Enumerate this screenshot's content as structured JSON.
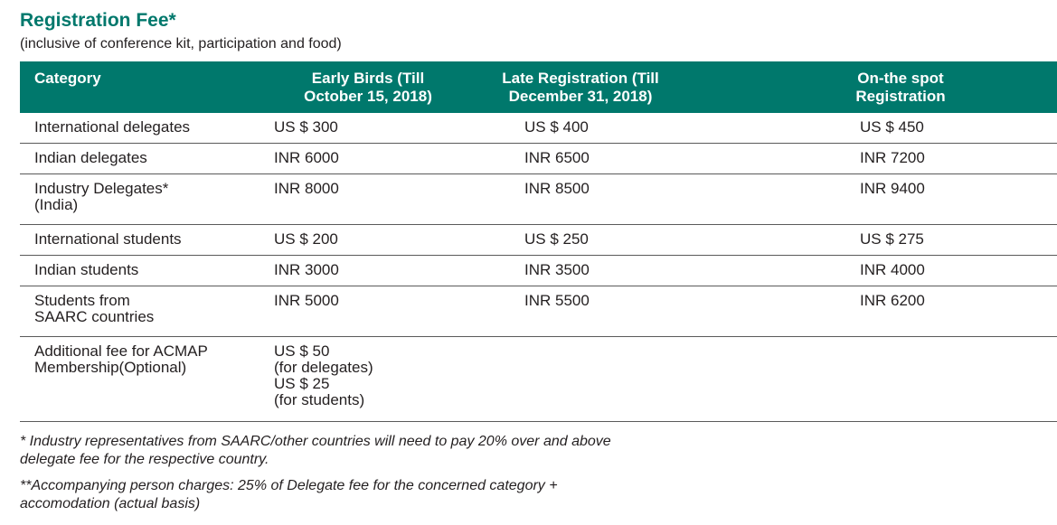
{
  "title": "Registration Fee*",
  "subtitle": "(inclusive of conference kit, participation and food)",
  "table": {
    "headers": [
      [
        "Category",
        ""
      ],
      [
        "Early Birds (Till",
        "October 15, 2018)"
      ],
      [
        "Late Registration (Till",
        "December 31, 2018)"
      ],
      [
        "On-the spot",
        "Registration"
      ]
    ],
    "rows": [
      {
        "category": [
          "International delegates"
        ],
        "early": [
          "US $ 300"
        ],
        "late": [
          "US $ 400"
        ],
        "spot": [
          "US $ 450"
        ]
      },
      {
        "category": [
          "Indian delegates"
        ],
        "early": [
          "INR 6000"
        ],
        "late": [
          "INR 6500"
        ],
        "spot": [
          "INR 7200"
        ]
      },
      {
        "category": [
          "Industry Delegates*",
          "(India)"
        ],
        "early": [
          "INR 8000"
        ],
        "late": [
          "INR 8500"
        ],
        "spot": [
          "INR 9400"
        ]
      },
      {
        "category": [
          "International students"
        ],
        "early": [
          "US $ 200"
        ],
        "late": [
          "US $ 250"
        ],
        "spot": [
          "US $ 275"
        ]
      },
      {
        "category": [
          "Indian students"
        ],
        "early": [
          "INR 3000"
        ],
        "late": [
          "INR 3500"
        ],
        "spot": [
          "INR 4000"
        ]
      },
      {
        "category": [
          "Students from",
          "SAARC countries"
        ],
        "early": [
          "INR 5000"
        ],
        "late": [
          "INR 5500"
        ],
        "spot": [
          "INR 6200"
        ]
      },
      {
        "category": [
          "Additional fee for ACMAP",
          "Membership(Optional)"
        ],
        "early": [
          "US $ 50",
          "(for delegates)",
          "US $ 25",
          "(for students)"
        ],
        "late": [],
        "spot": []
      }
    ]
  },
  "notes": [
    [
      "* Industry representatives from SAARC/other countries will need to pay 20% over and above",
      "delegate fee for the respective country."
    ],
    [
      "**Accompanying person charges: 25% of Delegate fee for the concerned category +",
      "accomodation (actual basis)"
    ]
  ],
  "colors": {
    "accent": "#00786c",
    "text": "#231f20",
    "rule": "#5a5a5a"
  }
}
